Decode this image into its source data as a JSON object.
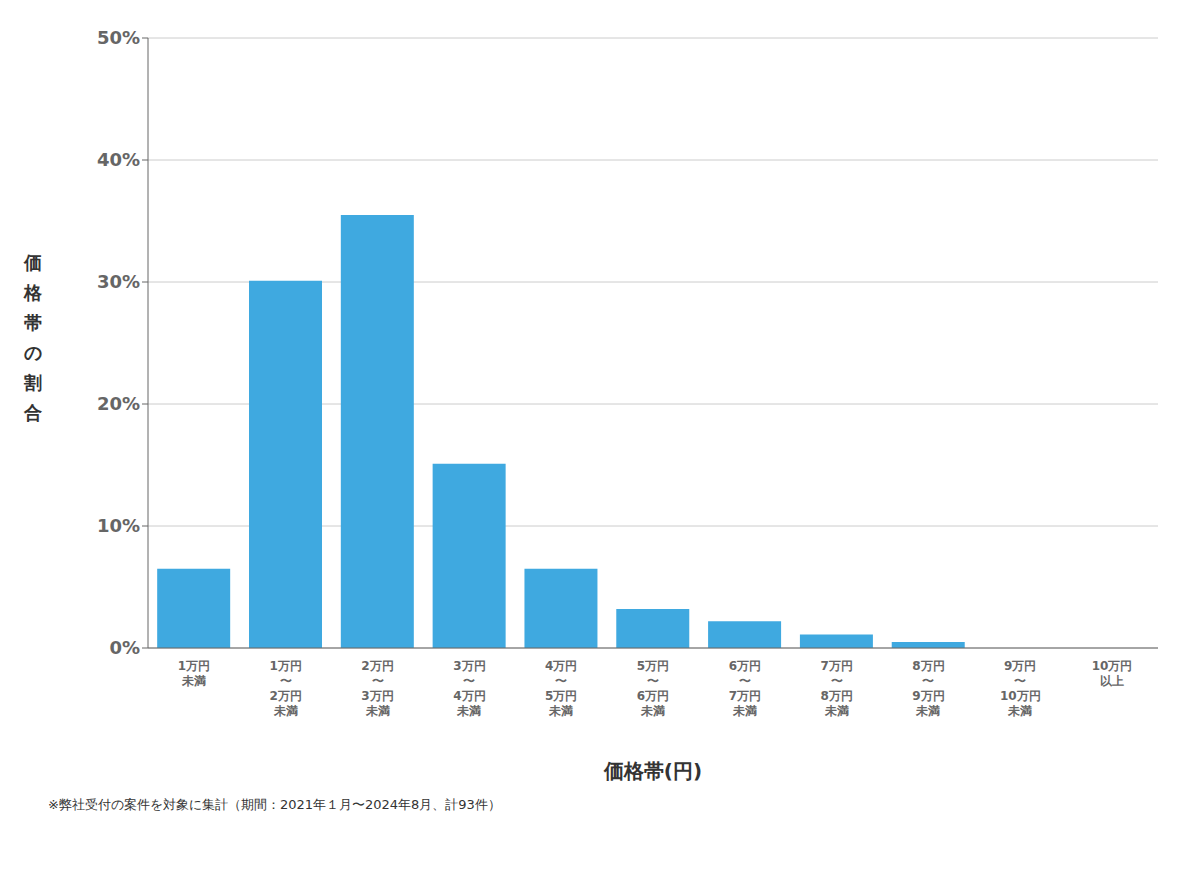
{
  "chart_data": {
    "type": "bar",
    "xlabel": "価格帯(円)",
    "ylabel": "価格帯の割合",
    "annotations": [
      "※弊社受付の案件を対象に集計（期間：2021年１月〜2024年8月、計93件）"
    ],
    "categories": [
      "1万円\n未満",
      "1万円\n〜\n2万円\n未満",
      "2万円\n〜\n3万円\n未満",
      "3万円\n〜\n4万円\n未満",
      "4万円\n〜\n5万円\n未満",
      "5万円\n〜\n6万円\n未満",
      "6万円\n〜\n7万円\n未満",
      "7万円\n〜\n8万円\n未満",
      "8万円\n〜\n9万円\n未満",
      "9万円\n〜\n10万円\n未満",
      "10万円\n以上"
    ],
    "values": [
      0.065,
      0.301,
      0.355,
      0.151,
      0.065,
      0.032,
      0.022,
      0.011,
      0.005,
      0.0,
      0.0
    ],
    "color": "#3fa9e0",
    "ylim": [
      0,
      0.5
    ],
    "yticks": [
      {
        "value": 0.0,
        "label": "0%"
      },
      {
        "value": 0.1,
        "label": "10%"
      },
      {
        "value": 0.2,
        "label": "20%"
      },
      {
        "value": 0.3,
        "label": "30%"
      },
      {
        "value": 0.4,
        "label": "40%"
      },
      {
        "value": 0.5,
        "label": "50%"
      }
    ],
    "grid": true
  }
}
